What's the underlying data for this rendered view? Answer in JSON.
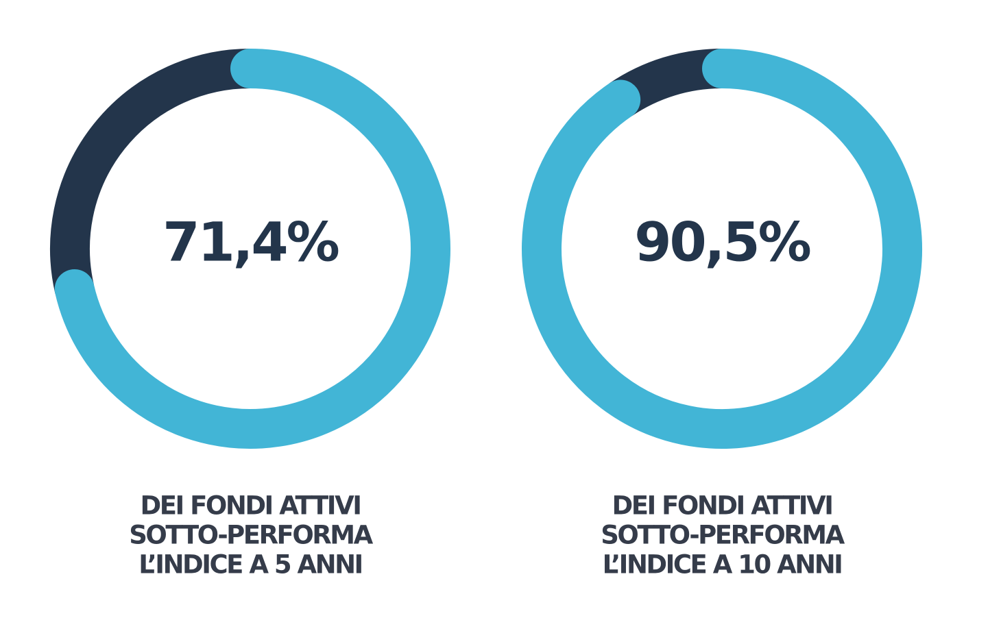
{
  "chart_data": [
    {
      "type": "donut",
      "values": [
        71.4,
        28.6
      ],
      "value_labels": [
        "71,4%",
        null
      ],
      "colors": [
        "#42b5d6",
        "#23354b"
      ],
      "caption": [
        "DEI FONDI ATTIVI",
        "SOTTO-PERFORMA",
        "L’INDICE A 5 ANNI"
      ]
    },
    {
      "type": "donut",
      "values": [
        90.5,
        9.5
      ],
      "value_labels": [
        "90,5%",
        null
      ],
      "colors": [
        "#42b5d6",
        "#23354b"
      ],
      "caption": [
        "DEI FONDI ATTIVI",
        "SOTTO-PERFORMA",
        "L’INDICE A 10 ANNI"
      ]
    }
  ]
}
